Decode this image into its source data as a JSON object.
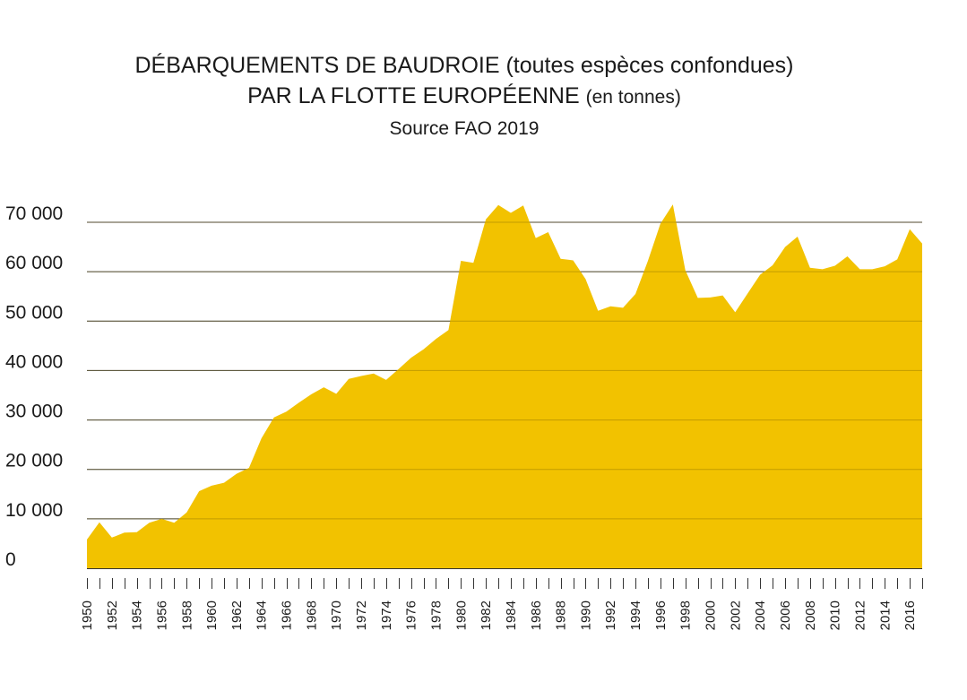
{
  "chart_data": {
    "type": "area",
    "title_line1": "DÉBARQUEMENTS DE BAUDROIE (toutes espèces confondues)",
    "title_line2_main": "PAR LA FLOTTE EUROPÉENNE",
    "title_line2_suffix": "(en tonnes)",
    "subtitle": "Source FAO 2019",
    "xlabel": "",
    "ylabel": "",
    "ylim": [
      0,
      70000
    ],
    "yticks": [
      0,
      10000,
      20000,
      30000,
      40000,
      50000,
      60000,
      70000
    ],
    "ytick_labels": [
      "0",
      "10 000",
      "20 000",
      "30 000",
      "40 000",
      "50 000",
      "60 000",
      "70 000"
    ],
    "xtick_labels": [
      "1950",
      "1952",
      "1954",
      "1956",
      "1958",
      "1960",
      "1962",
      "1964",
      "1966",
      "1968",
      "1970",
      "1972",
      "1974",
      "1976",
      "1978",
      "1980",
      "1982",
      "1984",
      "1986",
      "1988",
      "1990",
      "1992",
      "1994",
      "1996",
      "1998",
      "2000",
      "2002",
      "2004",
      "2006",
      "2008",
      "2010",
      "2012",
      "2014",
      "2016"
    ],
    "grid": true,
    "color": "#F2C200",
    "series": [
      {
        "x": [
          1950,
          1951,
          1952,
          1953,
          1954,
          1955,
          1956,
          1957,
          1958,
          1959,
          1960,
          1961,
          1962,
          1963,
          1964,
          1965,
          1966,
          1967,
          1968,
          1969,
          1970,
          1971,
          1972,
          1973,
          1974,
          1975,
          1976,
          1977,
          1978,
          1979,
          1980,
          1981,
          1982,
          1983,
          1984,
          1985,
          1986,
          1987,
          1988,
          1989,
          1990,
          1991,
          1992,
          1993,
          1994,
          1995,
          1996,
          1997,
          1998,
          1999,
          2000,
          2001,
          2002,
          2003,
          2004,
          2005,
          2006,
          2007,
          2008,
          2009,
          2010,
          2011,
          2012,
          2013,
          2014,
          2015,
          2016,
          2017
        ],
        "values": [
          5800,
          9300,
          6200,
          7200,
          7300,
          9200,
          10000,
          9200,
          11300,
          15600,
          16700,
          17300,
          19100,
          20300,
          26300,
          30500,
          31700,
          33500,
          35200,
          36600,
          35300,
          38300,
          38900,
          39400,
          38100,
          40300,
          42600,
          44300,
          46400,
          48200,
          62200,
          61800,
          70600,
          73500,
          71900,
          73400,
          66800,
          68000,
          62600,
          62300,
          58500,
          52100,
          53000,
          52700,
          55500,
          62200,
          69700,
          73600,
          60300,
          54700,
          54800,
          55200,
          51800,
          55600,
          59400,
          61300,
          65000,
          67100,
          60800,
          60500,
          61200,
          63100,
          60500,
          60500,
          61100,
          62500,
          68600,
          65700
        ]
      }
    ]
  }
}
